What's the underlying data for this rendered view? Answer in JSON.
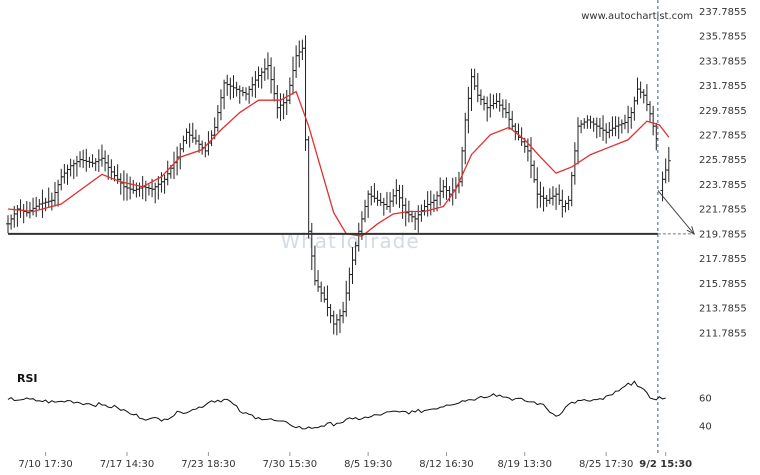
{
  "site": "www.autochartist.com",
  "watermark": "WhatToTrade",
  "rsi_label": "RSI",
  "colors": {
    "candle": "#222222",
    "ma": "#e03030",
    "level": "#333333",
    "rsi": "#111111",
    "current": "#2a5fb0"
  },
  "chart_data": [
    {
      "type": "line",
      "title": "",
      "y_ticks": [
        "237.7855",
        "235.7855",
        "233.7855",
        "231.7855",
        "229.7855",
        "227.7855",
        "225.7855",
        "223.7855",
        "221.7855",
        "219.7855",
        "217.7855",
        "215.7855",
        "213.7855",
        "211.7855"
      ],
      "ylim": [
        210.8,
        238.3
      ],
      "x_ticks": [
        "7/10 17:30",
        "7/17 14:30",
        "7/23 18:30",
        "7/30 15:30",
        "8/5 19:30",
        "8/12 16:30",
        "8/19 13:30",
        "8/25 17:30",
        "9/2 15:30"
      ],
      "highlight_x_tick": "9/2 15:30",
      "support_level": 219.7855,
      "forecast": {
        "from": 223.3,
        "to": 219.7855
      },
      "price_series": [
        {
          "x": 0.0,
          "y": 220.6
        },
        {
          "x": 0.3,
          "y": 221.8
        },
        {
          "x": 0.6,
          "y": 221.5
        },
        {
          "x": 1.0,
          "y": 222.2
        },
        {
          "x": 1.4,
          "y": 222.5
        },
        {
          "x": 1.7,
          "y": 224.4
        },
        {
          "x": 2.0,
          "y": 225.3
        },
        {
          "x": 2.3,
          "y": 225.8
        },
        {
          "x": 2.7,
          "y": 225.5
        },
        {
          "x": 3.0,
          "y": 225.9
        },
        {
          "x": 3.3,
          "y": 224.8
        },
        {
          "x": 3.7,
          "y": 223.6
        },
        {
          "x": 4.0,
          "y": 223.3
        },
        {
          "x": 4.3,
          "y": 223.6
        },
        {
          "x": 4.6,
          "y": 223.4
        },
        {
          "x": 5.0,
          "y": 224.2
        },
        {
          "x": 5.4,
          "y": 226.0
        },
        {
          "x": 5.7,
          "y": 228.0
        },
        {
          "x": 6.0,
          "y": 227.3
        },
        {
          "x": 6.3,
          "y": 226.5
        },
        {
          "x": 6.6,
          "y": 228.4
        },
        {
          "x": 6.9,
          "y": 232.0
        },
        {
          "x": 7.2,
          "y": 231.6
        },
        {
          "x": 7.6,
          "y": 231.1
        },
        {
          "x": 8.0,
          "y": 232.6
        },
        {
          "x": 8.3,
          "y": 233.4
        },
        {
          "x": 8.6,
          "y": 230.0
        },
        {
          "x": 8.9,
          "y": 230.6
        },
        {
          "x": 9.2,
          "y": 234.2
        },
        {
          "x": 9.4,
          "y": 234.8
        },
        {
          "x": 9.6,
          "y": 220.0
        },
        {
          "x": 9.8,
          "y": 216.0
        },
        {
          "x": 10.1,
          "y": 214.5
        },
        {
          "x": 10.4,
          "y": 212.5
        },
        {
          "x": 10.7,
          "y": 213.5
        },
        {
          "x": 10.9,
          "y": 216.5
        },
        {
          "x": 11.2,
          "y": 220.0
        },
        {
          "x": 11.5,
          "y": 223.0
        },
        {
          "x": 11.8,
          "y": 222.5
        },
        {
          "x": 12.1,
          "y": 222.0
        },
        {
          "x": 12.4,
          "y": 223.3
        },
        {
          "x": 12.7,
          "y": 221.5
        },
        {
          "x": 13.0,
          "y": 221.0
        },
        {
          "x": 13.3,
          "y": 222.0
        },
        {
          "x": 13.6,
          "y": 222.5
        },
        {
          "x": 13.9,
          "y": 223.6
        },
        {
          "x": 14.1,
          "y": 223.0
        },
        {
          "x": 14.4,
          "y": 224.0
        },
        {
          "x": 14.6,
          "y": 229.0
        },
        {
          "x": 14.8,
          "y": 232.5
        },
        {
          "x": 15.0,
          "y": 231.0
        },
        {
          "x": 15.3,
          "y": 230.0
        },
        {
          "x": 15.6,
          "y": 230.5
        },
        {
          "x": 15.9,
          "y": 229.6
        },
        {
          "x": 16.1,
          "y": 228.5
        },
        {
          "x": 16.3,
          "y": 227.6
        },
        {
          "x": 16.6,
          "y": 226.5
        },
        {
          "x": 16.9,
          "y": 223.0
        },
        {
          "x": 17.2,
          "y": 222.5
        },
        {
          "x": 17.5,
          "y": 223.0
        },
        {
          "x": 17.7,
          "y": 222.0
        },
        {
          "x": 17.9,
          "y": 222.5
        },
        {
          "x": 18.2,
          "y": 228.5
        },
        {
          "x": 18.5,
          "y": 229.0
        },
        {
          "x": 18.8,
          "y": 228.5
        },
        {
          "x": 19.1,
          "y": 228.0
        },
        {
          "x": 19.4,
          "y": 228.5
        },
        {
          "x": 19.7,
          "y": 228.8
        },
        {
          "x": 19.9,
          "y": 229.6
        },
        {
          "x": 20.1,
          "y": 231.5
        },
        {
          "x": 20.3,
          "y": 231.0
        },
        {
          "x": 20.5,
          "y": 229.5
        },
        {
          "x": 20.7,
          "y": 227.5
        },
        {
          "x": 20.8,
          "y": 223.3
        },
        {
          "x": 20.9,
          "y": 224.2
        },
        {
          "x": 21.1,
          "y": 225.7
        }
      ],
      "moving_average": [
        {
          "x": 0.0,
          "y": 221.8
        },
        {
          "x": 0.8,
          "y": 221.6
        },
        {
          "x": 1.7,
          "y": 222.2
        },
        {
          "x": 2.4,
          "y": 223.5
        },
        {
          "x": 3.0,
          "y": 224.6
        },
        {
          "x": 3.6,
          "y": 224.0
        },
        {
          "x": 4.3,
          "y": 223.6
        },
        {
          "x": 4.9,
          "y": 224.4
        },
        {
          "x": 5.5,
          "y": 226.0
        },
        {
          "x": 6.2,
          "y": 226.6
        },
        {
          "x": 6.8,
          "y": 228.2
        },
        {
          "x": 7.4,
          "y": 229.6
        },
        {
          "x": 8.0,
          "y": 230.6
        },
        {
          "x": 8.7,
          "y": 230.6
        },
        {
          "x": 9.2,
          "y": 231.3
        },
        {
          "x": 9.6,
          "y": 228.5
        },
        {
          "x": 10.0,
          "y": 225.0
        },
        {
          "x": 10.4,
          "y": 221.5
        },
        {
          "x": 10.8,
          "y": 219.8
        },
        {
          "x": 11.3,
          "y": 219.6
        },
        {
          "x": 11.8,
          "y": 220.6
        },
        {
          "x": 12.3,
          "y": 221.4
        },
        {
          "x": 12.8,
          "y": 221.6
        },
        {
          "x": 13.3,
          "y": 221.6
        },
        {
          "x": 13.9,
          "y": 222.0
        },
        {
          "x": 14.3,
          "y": 223.4
        },
        {
          "x": 14.8,
          "y": 226.2
        },
        {
          "x": 15.4,
          "y": 227.8
        },
        {
          "x": 16.0,
          "y": 228.4
        },
        {
          "x": 16.5,
          "y": 227.4
        },
        {
          "x": 17.0,
          "y": 226.0
        },
        {
          "x": 17.5,
          "y": 224.7
        },
        {
          "x": 18.0,
          "y": 225.2
        },
        {
          "x": 18.6,
          "y": 226.2
        },
        {
          "x": 19.2,
          "y": 226.8
        },
        {
          "x": 19.8,
          "y": 227.4
        },
        {
          "x": 20.4,
          "y": 228.9
        },
        {
          "x": 20.8,
          "y": 228.6
        },
        {
          "x": 21.1,
          "y": 227.6
        }
      ]
    },
    {
      "type": "line",
      "title": "RSI",
      "y_ticks": [
        "60",
        "40"
      ],
      "ylim": [
        30,
        80
      ],
      "x": [
        0.0,
        0.5,
        1.0,
        1.5,
        2.0,
        2.5,
        3.0,
        3.5,
        4.0,
        4.5,
        5.0,
        5.5,
        6.0,
        6.5,
        7.0,
        7.5,
        8.0,
        8.5,
        9.0,
        9.5,
        10.0,
        10.5,
        11.0,
        11.5,
        12.0,
        12.5,
        13.0,
        13.5,
        14.0,
        14.5,
        15.0,
        15.5,
        16.0,
        16.5,
        17.0,
        17.5,
        18.0,
        18.5,
        19.0,
        19.5,
        20.0,
        20.5,
        21.0
      ],
      "values": [
        59,
        59,
        58,
        57,
        58,
        56,
        55,
        53,
        48,
        45,
        45,
        50,
        52,
        58,
        59,
        49,
        46,
        44,
        41,
        38,
        40,
        42,
        45,
        46,
        49,
        50,
        50,
        52,
        55,
        58,
        60,
        63,
        60,
        58,
        56,
        47,
        57,
        58,
        59,
        65,
        72,
        60,
        60
      ]
    }
  ]
}
